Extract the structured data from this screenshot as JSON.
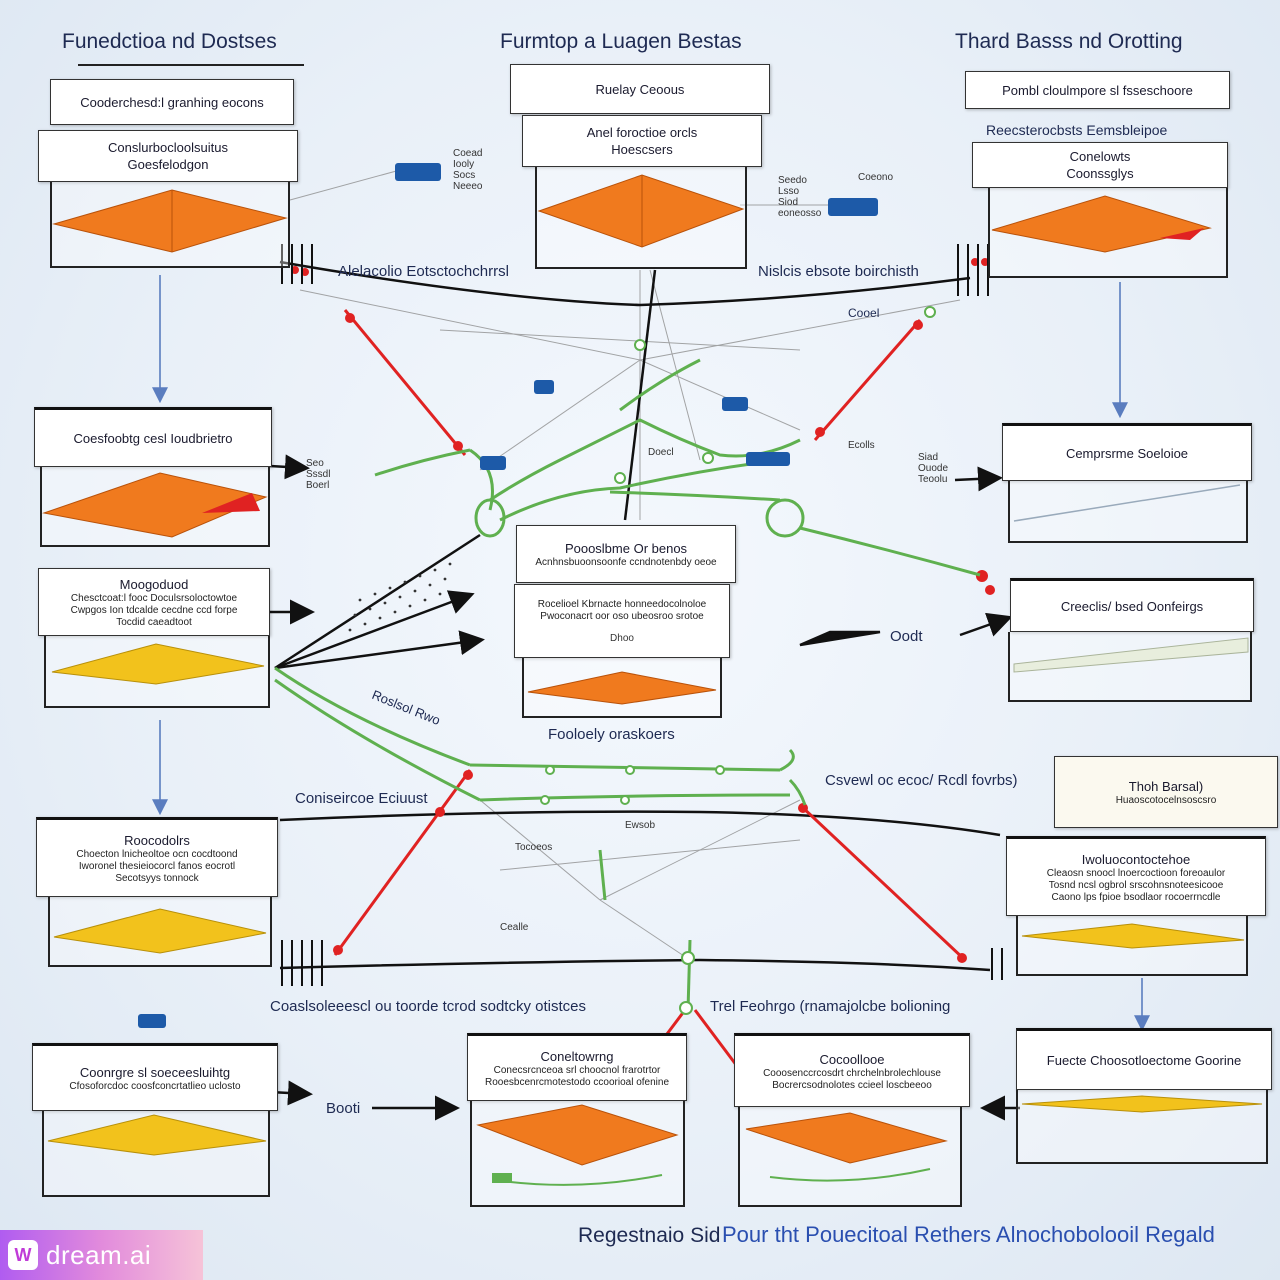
{
  "titles": {
    "left": "Funedctioa nd Dostses",
    "center": "Furmtop a Luagen Bestas",
    "right": "Thard Basss nd Orotting"
  },
  "boxes": {
    "tl_header": "Cooderchesd:l granhing eocons",
    "tl_sub": [
      "Conslurbocloolsuitus",
      "Goesfelodgon"
    ],
    "tc_header": "Ruelay Ceoous",
    "tc_sub": [
      "Anel foroctioe orcls",
      "Hoescsers"
    ],
    "tr_header": "Pombl cloulmpore sl fsseschoore",
    "tr_caption": "Reecsterocbsts Eemsbleipoe",
    "tr_sub": [
      "Conelowts",
      "Coonssglys"
    ],
    "l2": "Coesfoobtg cesl Ioudbrietro",
    "l3_head": "Moogoduod",
    "l3_lines": [
      "Chesctcoat:l fooc Doculsrsoloctowtoe",
      "Cwpgos Ion tdcalde cecdne ccd forpe",
      "Tocdid caeadtoot"
    ],
    "l4_head": "Roocodolrs",
    "l4_lines": [
      "Choecton lnicheoltoe ocn cocdtoond",
      "Iworonel thesieiocorcl fanos eocrotl",
      "Secotsyys tonnock"
    ],
    "l5_head": "Coonrgre sl soeceesluihtg",
    "l5_lines": [
      "Cfosoforcdoc coosfconcrtatlieo uclosto"
    ],
    "c_head": "Poooslbme Or benos",
    "c_line1": "Acnhnsbuoonsoonfe ccndnotenbdy oeoe",
    "c_lines": [
      "Rocelioel Kbrnacte honneedocolnoloe",
      "Pwoconacrt oor oso ubeosroo srotoe"
    ],
    "c_bottom": "Dhoo",
    "r2": "Cemprsrme Soeloioe",
    "r3": "Creeclis/ bsed Oonfeirgs",
    "r4_caption": "Thoh Barsal)",
    "r4_sub": "Huaoscotocelnsoscsro",
    "r5_head": "Iwoluocontoctehoe",
    "r5_lines": [
      "Cleaosn snoocl lnoercoctioon foreoaulor",
      "Tosnd ncsl ogbrol srscohnsnoteesicooe",
      "Caono lps fpioe bsodlaor rocoerrncdle"
    ],
    "b2_head": "Coneltowrng",
    "b2_lines": [
      "Conecsrcnceoa srl choocnol frarotrtor",
      "Rooesbcenrcmotestodo ccoorioal ofenine"
    ],
    "b3_head": "Cocoollooe",
    "b3_lines": [
      "Cooosenccrcosdrt chrchelnbrolechlouse",
      "Bocrercsodnolotes ccieel loscbeeoo"
    ],
    "b4_head": "Fuecte Choosotloectome Goorine"
  },
  "labels": {
    "stream_left": "Alelacolio Eotsctochchrrsl",
    "stream_right": "Nislcis ebsote boirchisth",
    "conn_left": "Coniseircoe Eciuust",
    "conn_right": "Csvewl oc ecoc/ Rcdl fovrbs)",
    "mid": "Fooloely oraskoers",
    "bottom_left": "Coaslsoleeescl ou toorde tcrod sodtcky otistces",
    "bottom_right": "Trel Feohrgo (rnamajolcbe bolioning",
    "diag": "Roslsol Rwo",
    "doub": "Oodt",
    "booi": "Booti",
    "cool": "Cooel"
  },
  "small_notes": {
    "n1": [
      "Coead",
      "Iooly",
      "Socs",
      "Neeeo"
    ],
    "n2": [
      "Seedo",
      "Lsso",
      "Siod",
      "eoneosso"
    ],
    "n3": [
      "Coeono"
    ],
    "n4": [
      "Seo",
      "Sssdl",
      "Boerl"
    ],
    "n5": [
      "Doecl"
    ],
    "n6": [
      "Ecolls"
    ],
    "n7": [
      "Siad",
      "Ouode",
      "Teoolu"
    ],
    "n8": [
      "Tocoeos"
    ],
    "n9": [
      "Cealle"
    ],
    "n10": [
      "Ewsob"
    ]
  },
  "footer": {
    "left": "Regestnaio Sid",
    "right": "Pour tht Pouecitoal Rethers Alnochobolooil Regald"
  },
  "watermark": "dream.ai",
  "colors": {
    "orange": "#f07a1e",
    "yellow": "#f2c21c",
    "red_wire": "#e02222",
    "green_wire": "#5fb04f",
    "arrow_blue": "#5a7dbf"
  }
}
